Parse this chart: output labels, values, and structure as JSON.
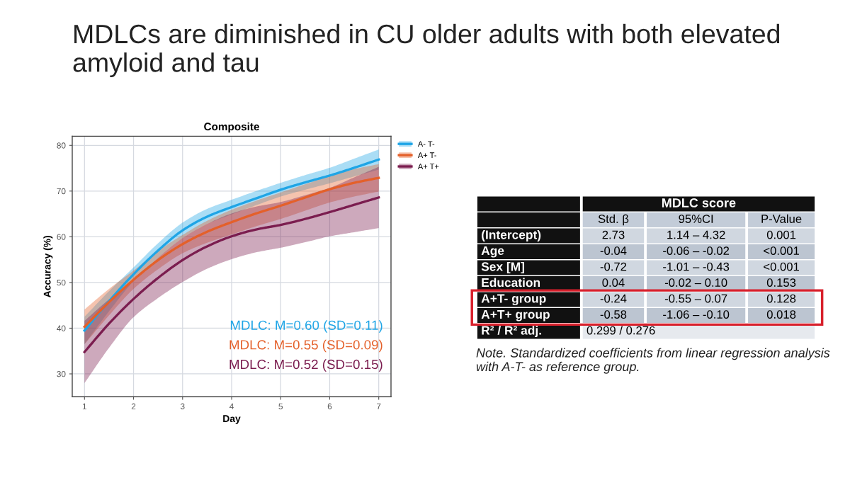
{
  "chart_data": [
    {
      "type": "line",
      "title": "MDLCs are diminished in CU older adults with both elevated amyloid and tau",
      "subtitle": "Composite",
      "xlabel": "Day",
      "ylabel": "Accuracy (%)",
      "x": [
        1,
        1.5,
        2,
        2.5,
        3,
        3.5,
        4,
        4.5,
        5,
        5.5,
        6,
        6.5,
        7
      ],
      "series": [
        {
          "name": "A- T-",
          "color": "#1fa5e6",
          "values": [
            39.5,
            45.9,
            51.8,
            57.0,
            61.4,
            64.4,
            66.5,
            68.4,
            70.3,
            71.9,
            73.4,
            75.1,
            76.9
          ],
          "lower": [
            36.5,
            43.7,
            50.3,
            55.4,
            59.7,
            62.8,
            64.9,
            66.9,
            68.8,
            70.3,
            71.7,
            73.2,
            74.7
          ],
          "upper": [
            42.5,
            48.1,
            53.3,
            58.6,
            63.1,
            66.1,
            68.1,
            70.0,
            71.8,
            73.5,
            75.1,
            77.1,
            79.1
          ]
        },
        {
          "name": "A+ T-",
          "color": "#e4602a",
          "values": [
            40.3,
            45.7,
            50.6,
            54.9,
            58.4,
            61.1,
            63.2,
            65.1,
            66.8,
            68.6,
            70.4,
            71.8,
            72.9
          ],
          "lower": [
            36.5,
            42.8,
            48.6,
            52.9,
            56.4,
            58.7,
            60.5,
            62.3,
            63.9,
            65.7,
            67.5,
            68.8,
            69.9
          ],
          "upper": [
            44.1,
            48.6,
            52.6,
            56.9,
            60.4,
            63.5,
            65.9,
            67.9,
            69.7,
            71.5,
            73.3,
            74.8,
            75.9
          ]
        },
        {
          "name": "A+ T+",
          "color": "#7b1d4f",
          "values": [
            34.8,
            41.0,
            46.4,
            51.0,
            54.9,
            57.9,
            60.1,
            61.6,
            62.6,
            63.9,
            65.4,
            67.0,
            68.6
          ],
          "lower": [
            28.0,
            35.7,
            42.4,
            46.6,
            50.1,
            53.0,
            55.1,
            56.6,
            57.6,
            58.8,
            60.1,
            61.0,
            61.9
          ],
          "upper": [
            41.6,
            46.3,
            50.4,
            55.4,
            59.7,
            62.8,
            65.1,
            66.6,
            67.6,
            69.1,
            70.7,
            73.0,
            75.3
          ]
        }
      ],
      "xlim": [
        0.75,
        7.25
      ],
      "xticks": [
        1,
        2,
        3,
        4,
        5,
        6,
        7
      ],
      "ylim": [
        25,
        82
      ],
      "yticks": [
        30,
        40,
        50,
        60,
        70,
        80
      ],
      "grid": true,
      "legend": "top right",
      "annotations": [
        "MDLC: M=0.60 (SD=0.11)",
        "MDLC: M=0.55 (SD=0.09)",
        "MDLC: M=0.52 (SD=0.15)"
      ]
    },
    {
      "type": "other",
      "title": "MDLC score",
      "categories": [
        "Std. β",
        "95%CI",
        "P-Value"
      ],
      "y_categories": [
        "(Intercept)",
        "Age",
        "Sex [M]",
        "Education",
        "A+T- group",
        "A+T+ group",
        "R² / R² adj."
      ],
      "cell_labels": [
        [
          "2.73",
          "1.14 – 4.32",
          "0.001"
        ],
        [
          "-0.04",
          "-0.06 – -0.02",
          "<0.001"
        ],
        [
          "-0.72",
          "-1.01 – -0.43",
          "<0.001"
        ],
        [
          "0.04",
          "-0.02 – 0.10",
          "0.153"
        ],
        [
          "-0.24",
          "-0.55 – 0.07",
          "0.128"
        ],
        [
          "-0.58",
          "-1.06 – -0.10",
          "0.018"
        ],
        [
          "0.299 / 0.276",
          null,
          null
        ]
      ],
      "colors": [
        null,
        null,
        null,
        null,
        "#d8202c",
        "#d8202c",
        null
      ],
      "annotations": [
        "Note. Standardized coefficients from linear regression analysis with A-T- as reference group."
      ]
    }
  ]
}
